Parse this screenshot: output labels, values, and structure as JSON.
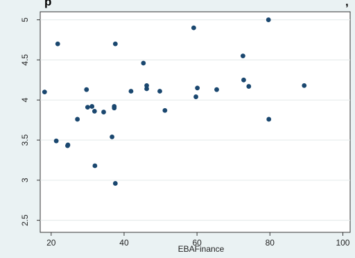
{
  "chart_data": {
    "type": "scatter",
    "title_fragment": "p",
    "title_trailing": ",",
    "xlabel": "EBAFinance",
    "ylabel": "",
    "xlim": [
      17,
      102
    ],
    "ylim": [
      2.35,
      5.1
    ],
    "xticks": [
      20,
      40,
      60,
      80,
      100
    ],
    "yticks": [
      2.5,
      3,
      3.5,
      4,
      4.5,
      5
    ],
    "grid": "horizontal",
    "marker_color": "#1a476f",
    "plot_background": "#ffffff",
    "outer_background": "#eaf2f3",
    "points": [
      {
        "x": 18.2,
        "y": 4.1
      },
      {
        "x": 21.4,
        "y": 3.49
      },
      {
        "x": 21.8,
        "y": 4.7
      },
      {
        "x": 24.5,
        "y": 3.43
      },
      {
        "x": 24.6,
        "y": 3.44
      },
      {
        "x": 27.2,
        "y": 3.76
      },
      {
        "x": 29.7,
        "y": 4.13
      },
      {
        "x": 30.0,
        "y": 3.91
      },
      {
        "x": 31.2,
        "y": 3.92
      },
      {
        "x": 31.9,
        "y": 3.86
      },
      {
        "x": 32.0,
        "y": 3.18
      },
      {
        "x": 34.4,
        "y": 3.85
      },
      {
        "x": 36.7,
        "y": 3.54
      },
      {
        "x": 37.3,
        "y": 3.9
      },
      {
        "x": 37.3,
        "y": 3.92
      },
      {
        "x": 37.6,
        "y": 4.7
      },
      {
        "x": 37.6,
        "y": 2.96
      },
      {
        "x": 41.9,
        "y": 4.11
      },
      {
        "x": 45.3,
        "y": 4.46
      },
      {
        "x": 46.2,
        "y": 4.18
      },
      {
        "x": 46.2,
        "y": 4.14
      },
      {
        "x": 49.8,
        "y": 4.11
      },
      {
        "x": 51.2,
        "y": 3.87
      },
      {
        "x": 59.1,
        "y": 4.9
      },
      {
        "x": 59.7,
        "y": 4.04
      },
      {
        "x": 60.1,
        "y": 4.15
      },
      {
        "x": 65.4,
        "y": 4.13
      },
      {
        "x": 72.6,
        "y": 4.55
      },
      {
        "x": 72.8,
        "y": 4.25
      },
      {
        "x": 74.2,
        "y": 4.17
      },
      {
        "x": 79.6,
        "y": 5.0
      },
      {
        "x": 79.7,
        "y": 3.76
      },
      {
        "x": 89.4,
        "y": 4.18
      }
    ]
  }
}
